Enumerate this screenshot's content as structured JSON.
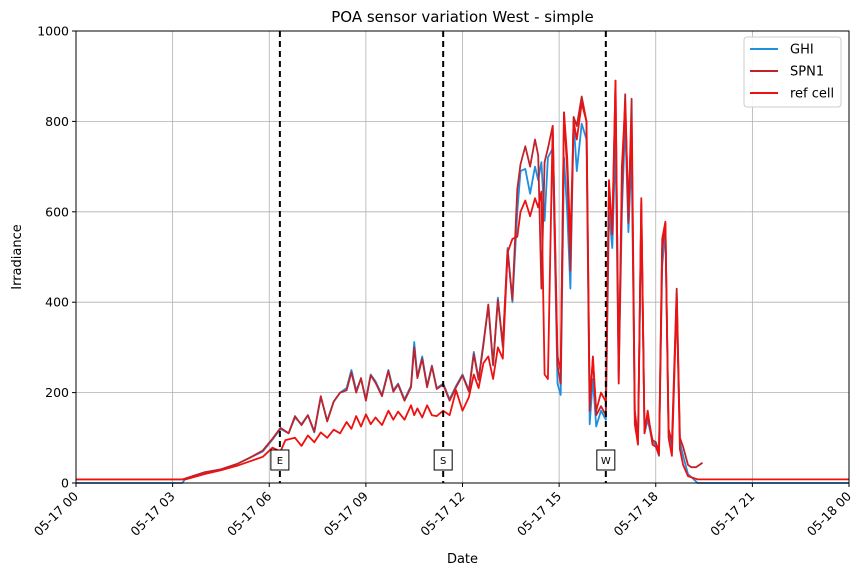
{
  "chart_data": {
    "type": "line",
    "title": "POA sensor variation West - simple",
    "xlabel": "Date",
    "ylabel": "Irradiance",
    "x_unit": "hours since 05-17 00:00",
    "xlim": [
      0,
      24
    ],
    "ylim": [
      0,
      1000
    ],
    "grid": true,
    "legend_position": "top-right",
    "x_ticks": [
      {
        "x": 0,
        "label": "05-17 00"
      },
      {
        "x": 3,
        "label": "05-17 03"
      },
      {
        "x": 6,
        "label": "05-17 06"
      },
      {
        "x": 9,
        "label": "05-17 09"
      },
      {
        "x": 12,
        "label": "05-17 12"
      },
      {
        "x": 15,
        "label": "05-17 15"
      },
      {
        "x": 18,
        "label": "05-17 18"
      },
      {
        "x": 21,
        "label": "05-17 21"
      },
      {
        "x": 24,
        "label": "05-18 00"
      }
    ],
    "y_ticks": [
      0,
      200,
      400,
      600,
      800,
      1000
    ],
    "vlines": [
      {
        "x": 6.33,
        "label": "E"
      },
      {
        "x": 11.4,
        "label": "S"
      },
      {
        "x": 16.45,
        "label": "W"
      }
    ],
    "series": [
      {
        "name": "GHI",
        "color": "#1f8fe0",
        "points": [
          [
            0,
            0
          ],
          [
            3.3,
            0
          ],
          [
            3.4,
            10
          ],
          [
            4,
            24
          ],
          [
            4.5,
            30
          ],
          [
            5,
            42
          ],
          [
            5.4,
            56
          ],
          [
            5.8,
            70
          ],
          [
            6.1,
            96
          ],
          [
            6.35,
            120
          ],
          [
            6.6,
            110
          ],
          [
            6.8,
            145
          ],
          [
            7,
            130
          ],
          [
            7.2,
            150
          ],
          [
            7.4,
            112
          ],
          [
            7.6,
            190
          ],
          [
            7.8,
            138
          ],
          [
            8,
            180
          ],
          [
            8.2,
            200
          ],
          [
            8.4,
            210
          ],
          [
            8.55,
            250
          ],
          [
            8.7,
            205
          ],
          [
            8.85,
            230
          ],
          [
            9,
            185
          ],
          [
            9.15,
            240
          ],
          [
            9.3,
            225
          ],
          [
            9.5,
            195
          ],
          [
            9.7,
            250
          ],
          [
            9.85,
            205
          ],
          [
            10,
            220
          ],
          [
            10.2,
            185
          ],
          [
            10.4,
            215
          ],
          [
            10.5,
            312
          ],
          [
            10.6,
            235
          ],
          [
            10.75,
            280
          ],
          [
            10.9,
            215
          ],
          [
            11.05,
            260
          ],
          [
            11.2,
            210
          ],
          [
            11.4,
            220
          ],
          [
            11.6,
            185
          ],
          [
            11.8,
            215
          ],
          [
            12,
            240
          ],
          [
            12.2,
            205
          ],
          [
            12.35,
            290
          ],
          [
            12.5,
            230
          ],
          [
            12.65,
            310
          ],
          [
            12.8,
            390
          ],
          [
            12.95,
            260
          ],
          [
            13.1,
            410
          ],
          [
            13.25,
            300
          ],
          [
            13.4,
            520
          ],
          [
            13.55,
            400
          ],
          [
            13.7,
            600
          ],
          [
            13.8,
            690
          ],
          [
            13.95,
            695
          ],
          [
            14.1,
            640
          ],
          [
            14.25,
            700
          ],
          [
            14.35,
            670
          ],
          [
            14.45,
            710
          ],
          [
            14.55,
            580
          ],
          [
            14.65,
            720
          ],
          [
            14.8,
            740
          ],
          [
            14.95,
            220
          ],
          [
            15.05,
            195
          ],
          [
            15.15,
            720
          ],
          [
            15.25,
            600
          ],
          [
            15.35,
            430
          ],
          [
            15.45,
            800
          ],
          [
            15.55,
            690
          ],
          [
            15.7,
            795
          ],
          [
            15.85,
            760
          ],
          [
            15.95,
            130
          ],
          [
            16.05,
            230
          ],
          [
            16.15,
            125
          ],
          [
            16.3,
            160
          ],
          [
            16.45,
            140
          ],
          [
            16.55,
            600
          ],
          [
            16.65,
            520
          ],
          [
            16.75,
            760
          ],
          [
            16.85,
            230
          ],
          [
            16.95,
            600
          ],
          [
            17.05,
            800
          ],
          [
            17.15,
            555
          ],
          [
            17.25,
            730
          ],
          [
            17.35,
            150
          ],
          [
            17.45,
            90
          ],
          [
            17.55,
            600
          ],
          [
            17.65,
            110
          ],
          [
            17.75,
            140
          ],
          [
            17.9,
            90
          ],
          [
            18,
            85
          ],
          [
            18.1,
            60
          ],
          [
            18.2,
            480
          ],
          [
            18.3,
            560
          ],
          [
            18.4,
            110
          ],
          [
            18.5,
            70
          ],
          [
            18.65,
            420
          ],
          [
            18.75,
            90
          ],
          [
            18.85,
            60
          ],
          [
            19,
            20
          ],
          [
            19.3,
            0
          ],
          [
            24,
            0
          ]
        ]
      },
      {
        "name": "SPN1",
        "color": "#c0242a",
        "points": [
          [
            0,
            8
          ],
          [
            3,
            8
          ],
          [
            3.3,
            8
          ],
          [
            3.4,
            10
          ],
          [
            4,
            24
          ],
          [
            4.5,
            30
          ],
          [
            5,
            42
          ],
          [
            5.4,
            56
          ],
          [
            5.8,
            72
          ],
          [
            6.1,
            98
          ],
          [
            6.35,
            122
          ],
          [
            6.6,
            110
          ],
          [
            6.8,
            148
          ],
          [
            7,
            128
          ],
          [
            7.2,
            150
          ],
          [
            7.4,
            114
          ],
          [
            7.6,
            192
          ],
          [
            7.8,
            136
          ],
          [
            8,
            180
          ],
          [
            8.2,
            200
          ],
          [
            8.4,
            205
          ],
          [
            8.55,
            245
          ],
          [
            8.7,
            200
          ],
          [
            8.85,
            232
          ],
          [
            9,
            182
          ],
          [
            9.15,
            238
          ],
          [
            9.3,
            222
          ],
          [
            9.5,
            192
          ],
          [
            9.7,
            248
          ],
          [
            9.85,
            202
          ],
          [
            10,
            218
          ],
          [
            10.2,
            182
          ],
          [
            10.4,
            212
          ],
          [
            10.5,
            300
          ],
          [
            10.6,
            232
          ],
          [
            10.75,
            275
          ],
          [
            10.9,
            212
          ],
          [
            11.05,
            258
          ],
          [
            11.2,
            208
          ],
          [
            11.4,
            218
          ],
          [
            11.6,
            182
          ],
          [
            11.8,
            212
          ],
          [
            12,
            238
          ],
          [
            12.2,
            202
          ],
          [
            12.35,
            285
          ],
          [
            12.5,
            228
          ],
          [
            12.65,
            305
          ],
          [
            12.8,
            395
          ],
          [
            12.95,
            262
          ],
          [
            13.1,
            405
          ],
          [
            13.25,
            305
          ],
          [
            13.4,
            515
          ],
          [
            13.55,
            405
          ],
          [
            13.7,
            650
          ],
          [
            13.8,
            705
          ],
          [
            13.95,
            745
          ],
          [
            14.1,
            700
          ],
          [
            14.25,
            760
          ],
          [
            14.35,
            725
          ],
          [
            14.45,
            430
          ],
          [
            14.55,
            710
          ],
          [
            14.65,
            740
          ],
          [
            14.8,
            790
          ],
          [
            14.95,
            260
          ],
          [
            15.05,
            220
          ],
          [
            15.15,
            820
          ],
          [
            15.25,
            690
          ],
          [
            15.35,
            470
          ],
          [
            15.45,
            810
          ],
          [
            15.55,
            790
          ],
          [
            15.7,
            855
          ],
          [
            15.85,
            800
          ],
          [
            15.95,
            160
          ],
          [
            16.05,
            280
          ],
          [
            16.15,
            150
          ],
          [
            16.3,
            170
          ],
          [
            16.45,
            150
          ],
          [
            16.55,
            650
          ],
          [
            16.65,
            560
          ],
          [
            16.75,
            890
          ],
          [
            16.85,
            250
          ],
          [
            16.95,
            640
          ],
          [
            17.05,
            860
          ],
          [
            17.15,
            575
          ],
          [
            17.25,
            850
          ],
          [
            17.35,
            160
          ],
          [
            17.45,
            100
          ],
          [
            17.55,
            620
          ],
          [
            17.65,
            120
          ],
          [
            17.75,
            150
          ],
          [
            17.9,
            95
          ],
          [
            18,
            90
          ],
          [
            18.1,
            70
          ],
          [
            18.2,
            520
          ],
          [
            18.3,
            575
          ],
          [
            18.4,
            120
          ],
          [
            18.5,
            90
          ],
          [
            18.65,
            430
          ],
          [
            18.75,
            100
          ],
          [
            18.85,
            80
          ],
          [
            19,
            40
          ],
          [
            19.1,
            35
          ],
          [
            19.25,
            35
          ],
          [
            19.45,
            45
          ]
        ]
      },
      {
        "name": "ref cell",
        "color": "#ee1111",
        "points": [
          [
            0,
            8
          ],
          [
            3.4,
            8
          ],
          [
            3.5,
            10
          ],
          [
            4,
            20
          ],
          [
            4.5,
            28
          ],
          [
            5,
            38
          ],
          [
            5.4,
            48
          ],
          [
            5.8,
            58
          ],
          [
            6.1,
            78
          ],
          [
            6.35,
            70
          ],
          [
            6.5,
            95
          ],
          [
            6.8,
            100
          ],
          [
            7,
            82
          ],
          [
            7.2,
            105
          ],
          [
            7.4,
            90
          ],
          [
            7.6,
            112
          ],
          [
            7.8,
            100
          ],
          [
            8,
            118
          ],
          [
            8.2,
            110
          ],
          [
            8.4,
            135
          ],
          [
            8.55,
            120
          ],
          [
            8.7,
            148
          ],
          [
            8.85,
            125
          ],
          [
            9,
            152
          ],
          [
            9.15,
            130
          ],
          [
            9.3,
            145
          ],
          [
            9.5,
            128
          ],
          [
            9.7,
            160
          ],
          [
            9.85,
            140
          ],
          [
            10,
            158
          ],
          [
            10.2,
            140
          ],
          [
            10.4,
            172
          ],
          [
            10.5,
            150
          ],
          [
            10.6,
            165
          ],
          [
            10.75,
            145
          ],
          [
            10.9,
            172
          ],
          [
            11.05,
            150
          ],
          [
            11.2,
            148
          ],
          [
            11.4,
            160
          ],
          [
            11.6,
            150
          ],
          [
            11.8,
            205
          ],
          [
            12,
            160
          ],
          [
            12.2,
            190
          ],
          [
            12.35,
            240
          ],
          [
            12.5,
            210
          ],
          [
            12.65,
            265
          ],
          [
            12.8,
            280
          ],
          [
            12.95,
            230
          ],
          [
            13.1,
            300
          ],
          [
            13.25,
            275
          ],
          [
            13.4,
            510
          ],
          [
            13.55,
            540
          ],
          [
            13.7,
            545
          ],
          [
            13.8,
            600
          ],
          [
            13.95,
            625
          ],
          [
            14.1,
            590
          ],
          [
            14.25,
            630
          ],
          [
            14.35,
            610
          ],
          [
            14.45,
            645
          ],
          [
            14.55,
            240
          ],
          [
            14.65,
            230
          ],
          [
            14.8,
            790
          ],
          [
            14.95,
            280
          ],
          [
            15.05,
            250
          ],
          [
            15.15,
            820
          ],
          [
            15.25,
            720
          ],
          [
            15.35,
            530
          ],
          [
            15.45,
            800
          ],
          [
            15.55,
            760
          ],
          [
            15.7,
            840
          ],
          [
            15.85,
            800
          ],
          [
            15.95,
            180
          ],
          [
            16.05,
            275
          ],
          [
            16.15,
            160
          ],
          [
            16.3,
            200
          ],
          [
            16.45,
            180
          ],
          [
            16.55,
            670
          ],
          [
            16.65,
            550
          ],
          [
            16.75,
            890
          ],
          [
            16.85,
            220
          ],
          [
            16.95,
            700
          ],
          [
            17.05,
            840
          ],
          [
            17.15,
            600
          ],
          [
            17.25,
            800
          ],
          [
            17.35,
            130
          ],
          [
            17.45,
            85
          ],
          [
            17.55,
            630
          ],
          [
            17.65,
            110
          ],
          [
            17.75,
            160
          ],
          [
            17.9,
            85
          ],
          [
            18,
            80
          ],
          [
            18.1,
            62
          ],
          [
            18.2,
            540
          ],
          [
            18.3,
            578
          ],
          [
            18.4,
            100
          ],
          [
            18.5,
            60
          ],
          [
            18.65,
            410
          ],
          [
            18.75,
            75
          ],
          [
            18.85,
            40
          ],
          [
            19,
            15
          ],
          [
            19.3,
            8
          ],
          [
            24,
            8
          ]
        ]
      }
    ]
  }
}
